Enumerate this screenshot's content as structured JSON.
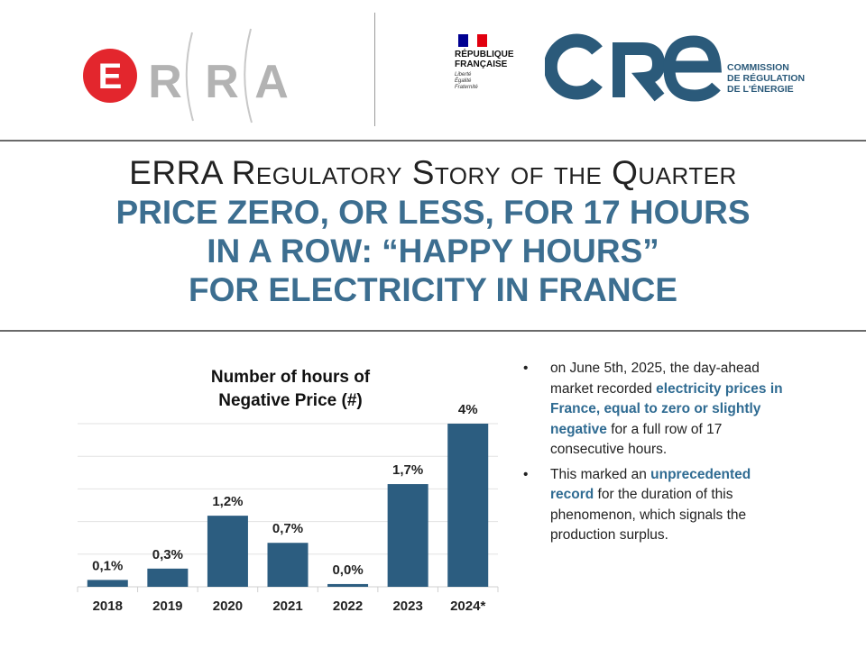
{
  "header": {
    "erra_logo": {
      "letters": [
        "E",
        "R",
        "R",
        "A"
      ]
    },
    "rf_logo": {
      "title_line1": "RÉPUBLIQUE",
      "title_line2": "FRANÇAISE",
      "motto_line1": "Liberté",
      "motto_line2": "Égalité",
      "motto_line3": "Fraternité",
      "flag_colors": [
        "#000091",
        "#ffffff",
        "#e1000f"
      ]
    },
    "cre_logo": {
      "wordmark": "CRE",
      "sub_line1": "COMMISSION",
      "sub_line2": "DE RÉGULATION",
      "sub_line3": "DE L'ÉNERGIE"
    }
  },
  "title": {
    "kicker": "ERRA Regulatory Story of the Quarter",
    "headline_line1": "PRICE ZERO, OR LESS, FOR 17 HOURS",
    "headline_line2": "IN A ROW: “HAPPY HOURS”",
    "headline_line3": "FOR ELECTRICITY IN FRANCE"
  },
  "chart_data": {
    "type": "bar",
    "title_line1": "Number of hours of",
    "title_line2": "Negative Price (#)",
    "categories": [
      "2018",
      "2019",
      "2020",
      "2021",
      "2022",
      "2023",
      "2024*"
    ],
    "values": [
      0.1,
      0.3,
      1.2,
      0.7,
      0.0,
      1.7,
      4
    ],
    "value_labels": [
      "0,1%",
      "0,3%",
      "1,2%",
      "0,7%",
      "0,0%",
      "1,7%",
      "4%"
    ],
    "bar_values": [
      20,
      53,
      207,
      128,
      8,
      299,
      475
    ],
    "ylim": [
      0,
      475
    ],
    "grid": true,
    "bar_color": "#2c5d80"
  },
  "bullets": [
    {
      "pre": "on June 5th, 2025, the day-ahead market recorded ",
      "bold": "electricity prices in France, equal to zero or slightly negative",
      "post": " for a full row of 17 consecutive hours."
    },
    {
      "pre": "This marked an ",
      "bold": "unprecedented record",
      "post": " for the duration of this phenomenon, which signals the production surplus."
    }
  ],
  "colors": {
    "accent": "#3c6e90",
    "erra_red": "#e3262d",
    "erra_grey": "#b3b3b3",
    "cre_blue": "#2b5a7a"
  }
}
